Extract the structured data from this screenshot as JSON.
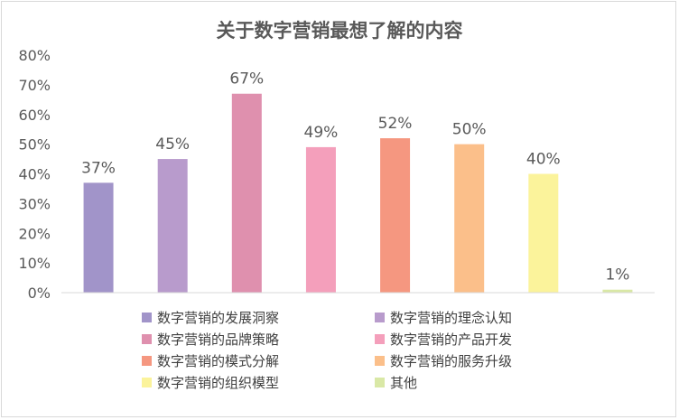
{
  "chart_data": {
    "type": "bar",
    "title": "关于数字营销最想了解的内容",
    "xlabel": "",
    "ylabel": "",
    "ylim": [
      0,
      0.8
    ],
    "ytick_labels": [
      "0%",
      "10%",
      "20%",
      "30%",
      "40%",
      "50%",
      "60%",
      "70%",
      "80%"
    ],
    "grid": false,
    "legend_position": "bottom",
    "categories": [
      "数字营销的发展洞察",
      "数字营销的理念认知",
      "数字营销的品牌策略",
      "数字营销的产品开发",
      "数字营销的模式分解",
      "数字营销的服务升级",
      "数字营销的组织模型",
      "其他"
    ],
    "values": [
      0.37,
      0.45,
      0.67,
      0.49,
      0.52,
      0.5,
      0.4,
      0.01
    ],
    "data_labels": [
      "37%",
      "45%",
      "67%",
      "49%",
      "52%",
      "50%",
      "40%",
      "1%"
    ],
    "colors": [
      "#a194c9",
      "#b89bcc",
      "#df90ae",
      "#f49fbb",
      "#f59780",
      "#fbbf8a",
      "#fbf39b",
      "#d9e8a6"
    ]
  }
}
